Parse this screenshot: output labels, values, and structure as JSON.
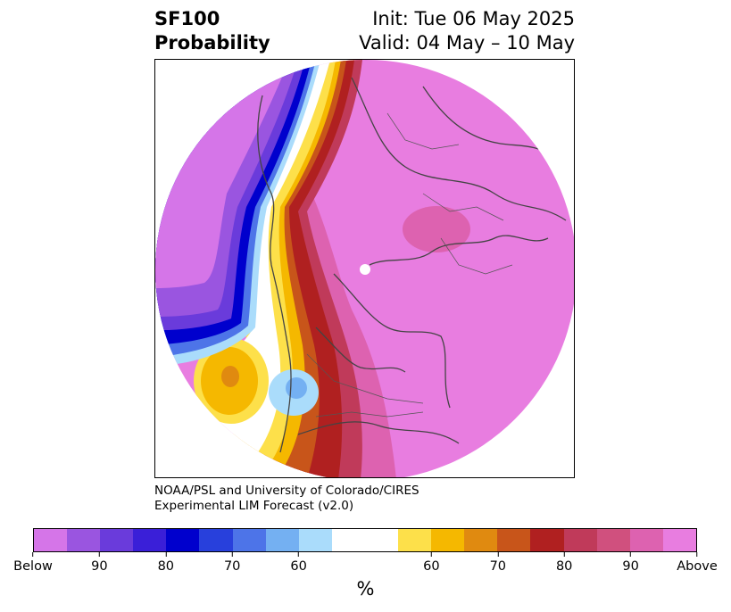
{
  "header": {
    "title_line1": "SF100",
    "title_line2": "Probability",
    "init_text": "Init: Tue 06 May 2025",
    "valid_text": "Valid: 04 May – 10 May"
  },
  "credit": {
    "line1": "NOAA/PSL and University of Colorado/CIRES",
    "line2": "Experimental LIM Forecast (v2.0)"
  },
  "colorbar": {
    "colors": [
      "#d575e8",
      "#9a55e0",
      "#6a3bdb",
      "#3a1fd8",
      "#0000cd",
      "#2840dc",
      "#4d74e8",
      "#74b0f2",
      "#aadcfb",
      "#ffffff",
      "#ffffff",
      "#fde04a",
      "#f5b800",
      "#e08a10",
      "#c8551a",
      "#b02020",
      "#c03a5a",
      "#d0507e",
      "#dd62b0",
      "#e87de0"
    ],
    "tick_labels": [
      "Below",
      "90",
      "80",
      "70",
      "60",
      "60",
      "70",
      "80",
      "90",
      "Above"
    ],
    "unit_label": "%"
  },
  "map": {
    "colors": {
      "above_max": "#e87de0",
      "above_90": "#dd62b0",
      "above_85": "#d0507e",
      "above_80": "#c03a5a",
      "above_75": "#b02020",
      "above_70": "#c8551a",
      "above_65": "#e08a10",
      "above_60": "#f5b800",
      "above_55": "#fde04a",
      "below_55": "#aadcfb",
      "below_60": "#74b0f2",
      "below_65": "#4d74e8",
      "below_70": "#2840dc",
      "below_75": "#0000cd",
      "below_80": "#3a1fd8",
      "below_85": "#6a3bdb",
      "below_90": "#9a55e0",
      "below_max": "#d575e8",
      "coastline": "#444444"
    }
  }
}
